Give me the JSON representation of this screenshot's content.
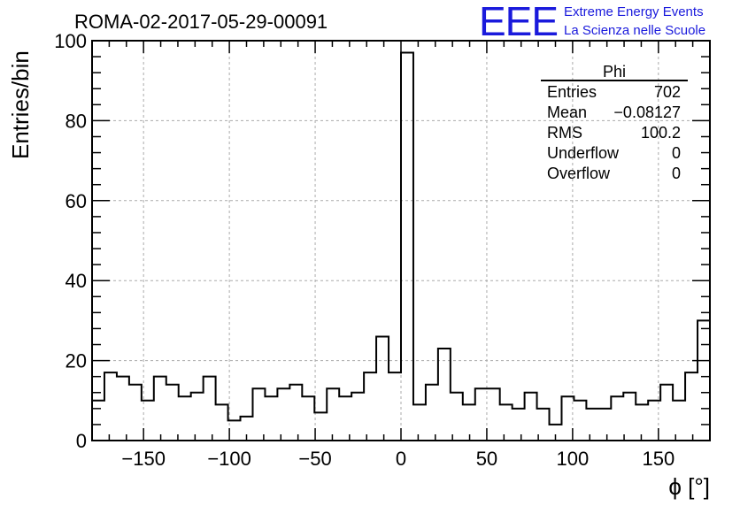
{
  "chart_data": {
    "type": "histogram",
    "title": "ROMA-02-2017-05-29-00091",
    "xlabel": "ϕ [°]",
    "ylabel": "Entries/bin",
    "xlim": [
      -180,
      180
    ],
    "ylim": [
      0,
      100
    ],
    "bin_width": 7.2,
    "x_ticks": [
      -150,
      -100,
      -50,
      0,
      50,
      100,
      150
    ],
    "x_tick_labels": [
      "−150",
      "−100",
      "−50",
      "0",
      "50",
      "100",
      "150"
    ],
    "y_ticks": [
      0,
      20,
      40,
      60,
      80,
      100
    ],
    "y_tick_labels": [
      "0",
      "20",
      "40",
      "60",
      "80",
      "100"
    ],
    "grid": true,
    "bin_lower_edges": [
      -180,
      -172.8,
      -165.6,
      -158.4,
      -151.2,
      -144,
      -136.8,
      -129.6,
      -122.4,
      -115.2,
      -108,
      -100.8,
      -93.6,
      -86.4,
      -79.2,
      -72,
      -64.8,
      -57.6,
      -50.4,
      -43.2,
      -36,
      -28.8,
      -21.6,
      -14.4,
      -7.2,
      0,
      7.2,
      14.4,
      21.6,
      28.8,
      36,
      43.2,
      50.4,
      57.6,
      64.8,
      72,
      79.2,
      86.4,
      93.6,
      100.8,
      108,
      115.2,
      122.4,
      129.6,
      136.8,
      144,
      151.2,
      158.4,
      165.6,
      172.8
    ],
    "values": [
      10,
      17,
      16,
      14,
      10,
      16,
      14,
      11,
      12,
      16,
      9,
      5,
      6,
      13,
      11,
      13,
      14,
      11,
      7,
      13,
      11,
      12,
      17,
      26,
      17,
      97,
      9,
      14,
      23,
      12,
      9,
      13,
      13,
      9,
      8,
      12,
      8,
      4,
      11,
      10,
      8,
      8,
      11,
      12,
      9,
      10,
      14,
      10,
      17,
      30
    ],
    "stats_box": {
      "title": "Phi",
      "rows": [
        {
          "label": "Entries",
          "value": "702"
        },
        {
          "label": "Mean",
          "value": "−0.08127"
        },
        {
          "label": "RMS",
          "value": "100.2"
        },
        {
          "label": "Underflow",
          "value": "0"
        },
        {
          "label": "Overflow",
          "value": "0"
        }
      ]
    }
  },
  "logo": {
    "mark": "EEE",
    "line1": "Extreme Energy Events",
    "line2": "La Scienza nelle Scuole"
  }
}
